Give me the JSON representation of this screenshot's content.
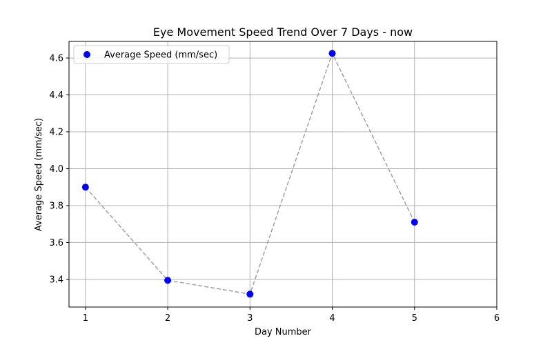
{
  "chart_data": {
    "type": "scatter",
    "title": "Eye Movement Speed Trend Over 7 Days - now",
    "xlabel": "Day Number",
    "ylabel": "Average Speed (mm/sec)",
    "xlim": [
      0.8,
      6
    ],
    "ylim": [
      3.25,
      4.69
    ],
    "xticks": [
      1,
      2,
      3,
      4,
      5,
      6
    ],
    "yticks": [
      3.4,
      3.6,
      3.8,
      4.0,
      4.2,
      4.4,
      4.6
    ],
    "xtick_labels": [
      "1",
      "2",
      "3",
      "4",
      "5",
      "6"
    ],
    "ytick_labels": [
      "3.4",
      "3.6",
      "3.8",
      "4.0",
      "4.2",
      "4.4",
      "4.6"
    ],
    "grid": true,
    "legend_position": "top-left",
    "series": [
      {
        "name": "Average Speed (mm/sec)",
        "x": [
          1,
          2,
          3,
          4,
          5
        ],
        "y": [
          3.9,
          3.395,
          3.32,
          4.625,
          3.71
        ],
        "marker_color": "#0000ff",
        "connector_color": "#a0a0a0",
        "connector_style": "dashed"
      }
    ]
  }
}
